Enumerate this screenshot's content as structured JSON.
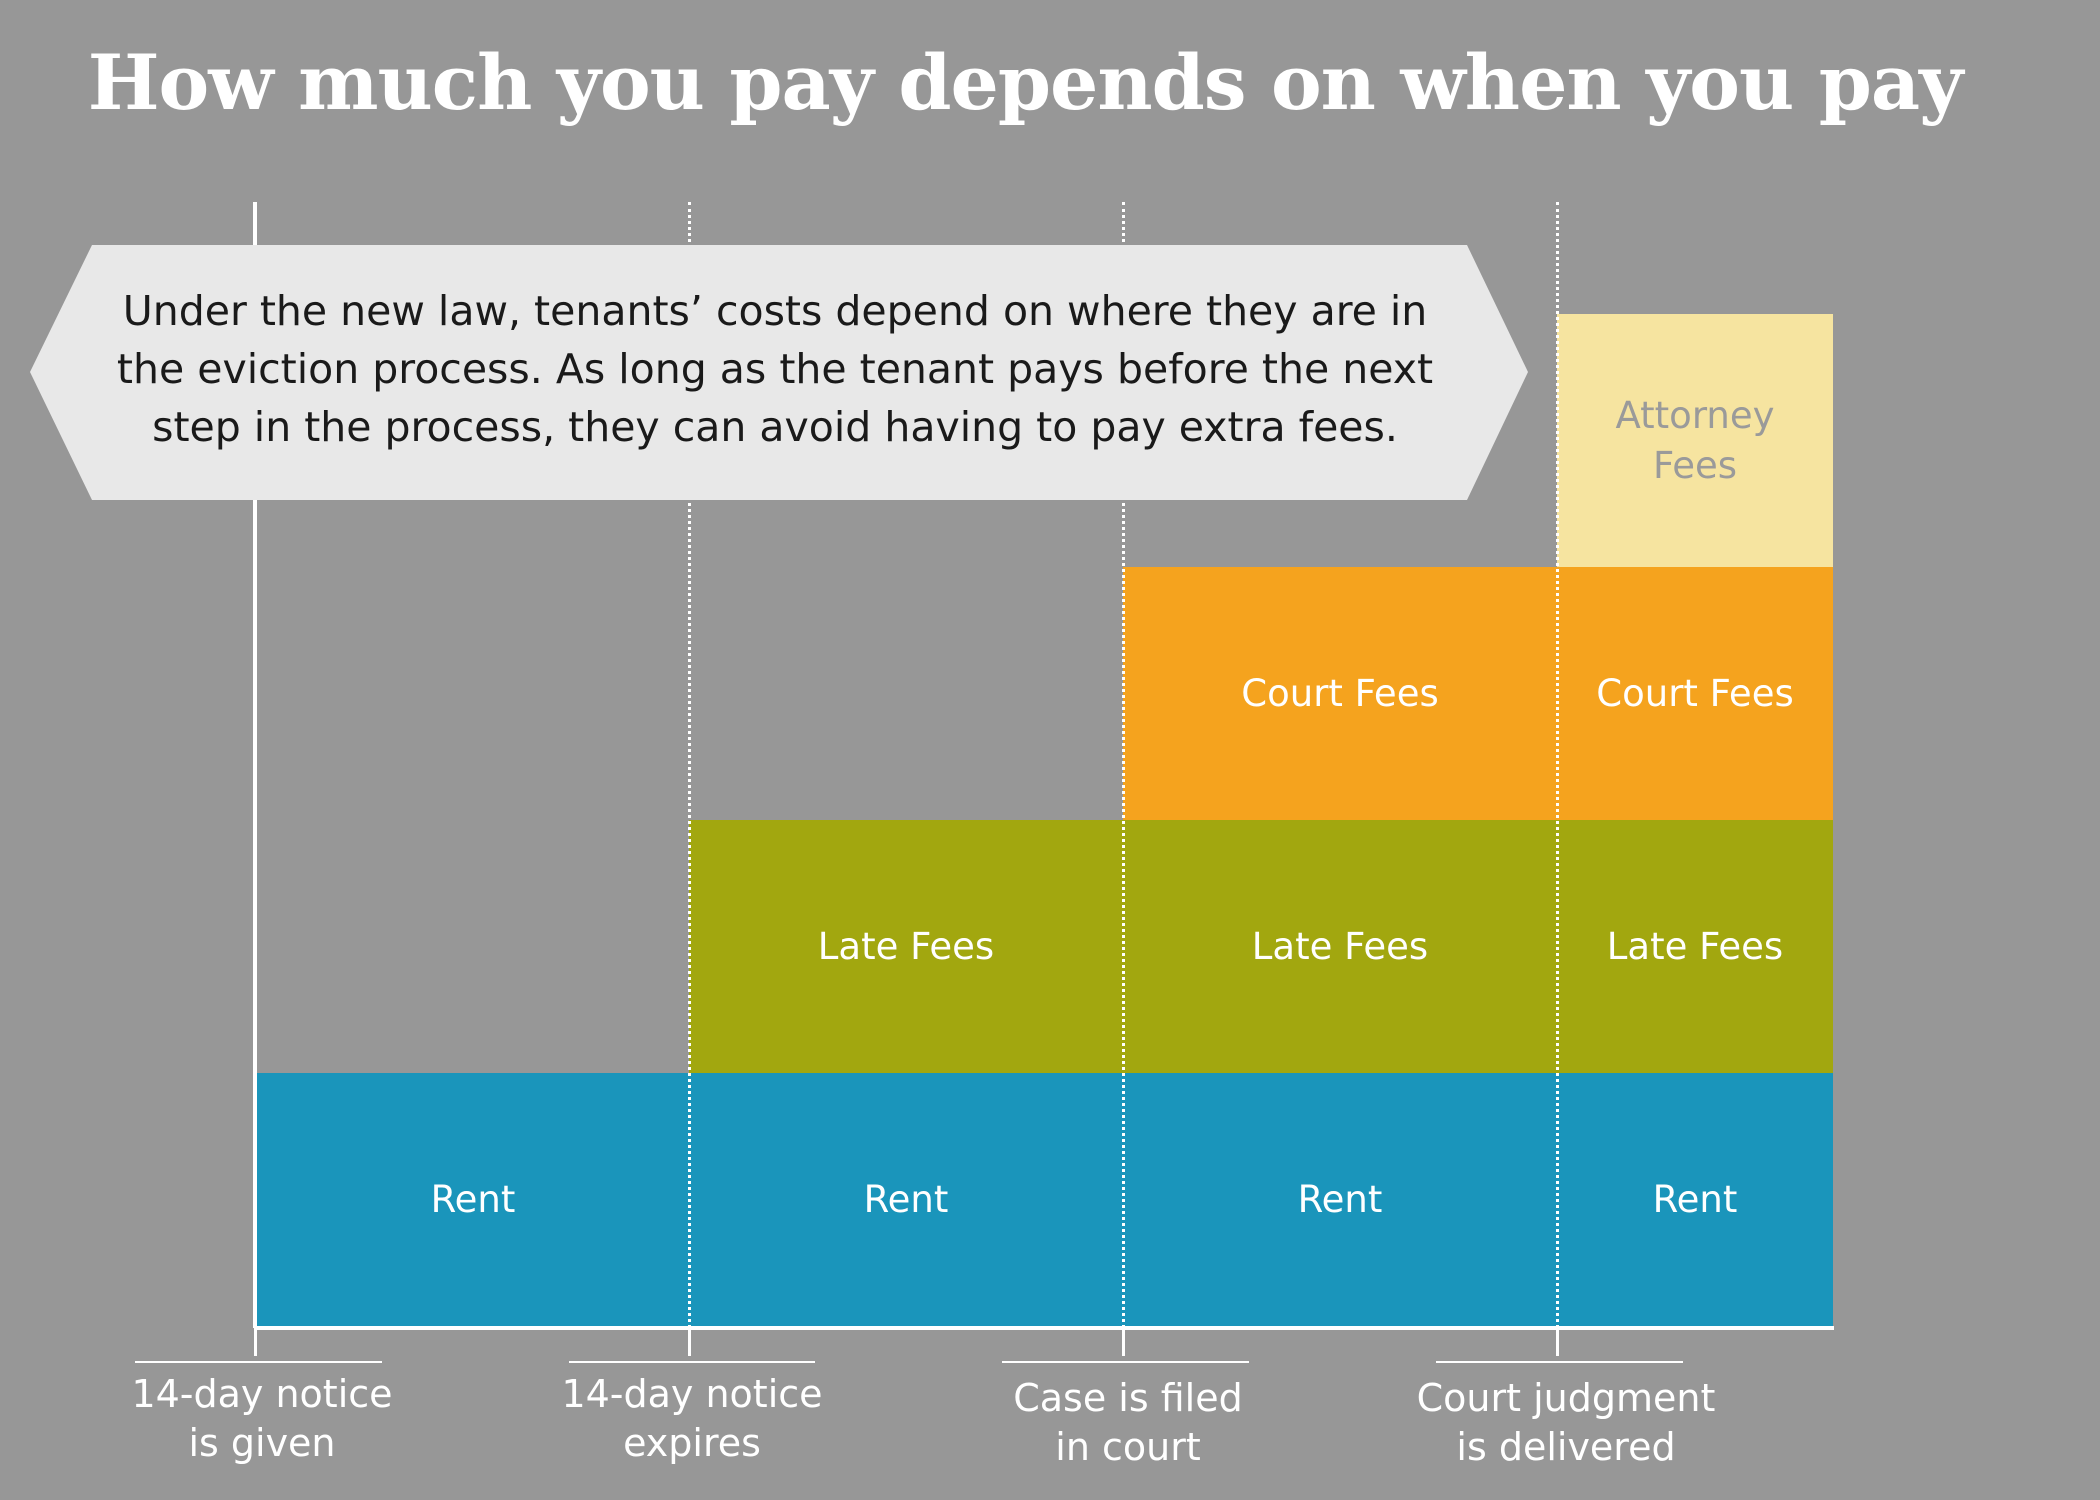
{
  "title": "How much you pay depends on when you pay",
  "callout": "Under the new law, tenants’ costs depend on where they are in the eviction process. As long as the tenant pays before the next step in the process, they can avoid having to pay extra fees.",
  "stages": [
    {
      "label_line1": "14-day notice",
      "label_line2": "is given"
    },
    {
      "label_line1": "14-day notice",
      "label_line2": "expires"
    },
    {
      "label_line1": "Case is filed",
      "label_line2": "in court"
    },
    {
      "label_line1": "Court judgment",
      "label_line2": "is delivered"
    }
  ],
  "columns": [
    {
      "rent": "Rent"
    },
    {
      "rent": "Rent",
      "late": "Late Fees"
    },
    {
      "rent": "Rent",
      "late": "Late Fees",
      "court": "Court Fees"
    },
    {
      "rent": "Rent",
      "late": "Late Fees",
      "court": "Court Fees",
      "attorney_line1": "Attorney",
      "attorney_line2": "Fees"
    }
  ],
  "colors": {
    "background": "#979797",
    "rent": "#1a95bb",
    "late": "#a2a70f",
    "court": "#f5a31e",
    "attorney": "#f6e4a0",
    "attorney_text": "#9a9a9a",
    "callout": "#e8e8e8"
  }
}
